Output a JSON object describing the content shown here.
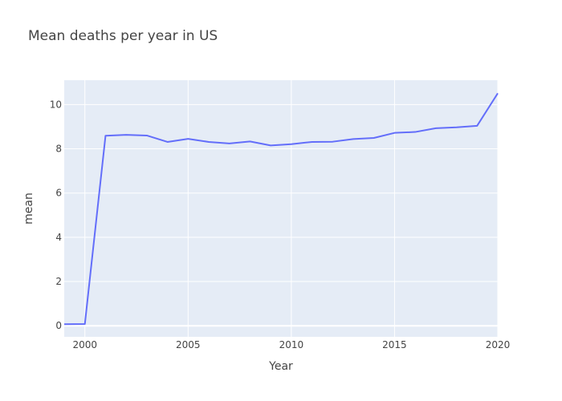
{
  "chart_data": {
    "type": "line",
    "title": "Mean deaths per year in US",
    "xlabel": "Year",
    "ylabel": "mean",
    "xlim": [
      1999,
      2020
    ],
    "ylim": [
      -0.5,
      11.1
    ],
    "x_ticks": [
      2000,
      2005,
      2010,
      2015,
      2020
    ],
    "y_ticks": [
      0,
      2,
      4,
      6,
      8,
      10
    ],
    "grid": true,
    "legend": "none",
    "colors": {
      "background": "#e5ecf6",
      "line": "#636efa",
      "grid": "#ffffff"
    },
    "series": [
      {
        "x": [
          1999,
          2000,
          2001,
          2002,
          2003,
          2004,
          2005,
          2006,
          2007,
          2008,
          2009,
          2010,
          2011,
          2012,
          2013,
          2014,
          2015,
          2016,
          2017,
          2018,
          2019,
          2020
        ],
        "values": [
          0.07,
          0.08,
          8.59,
          8.63,
          8.6,
          8.31,
          8.45,
          8.31,
          8.24,
          8.33,
          8.15,
          8.21,
          8.31,
          8.32,
          8.44,
          8.49,
          8.72,
          8.76,
          8.93,
          8.97,
          9.04,
          10.51
        ]
      }
    ]
  }
}
